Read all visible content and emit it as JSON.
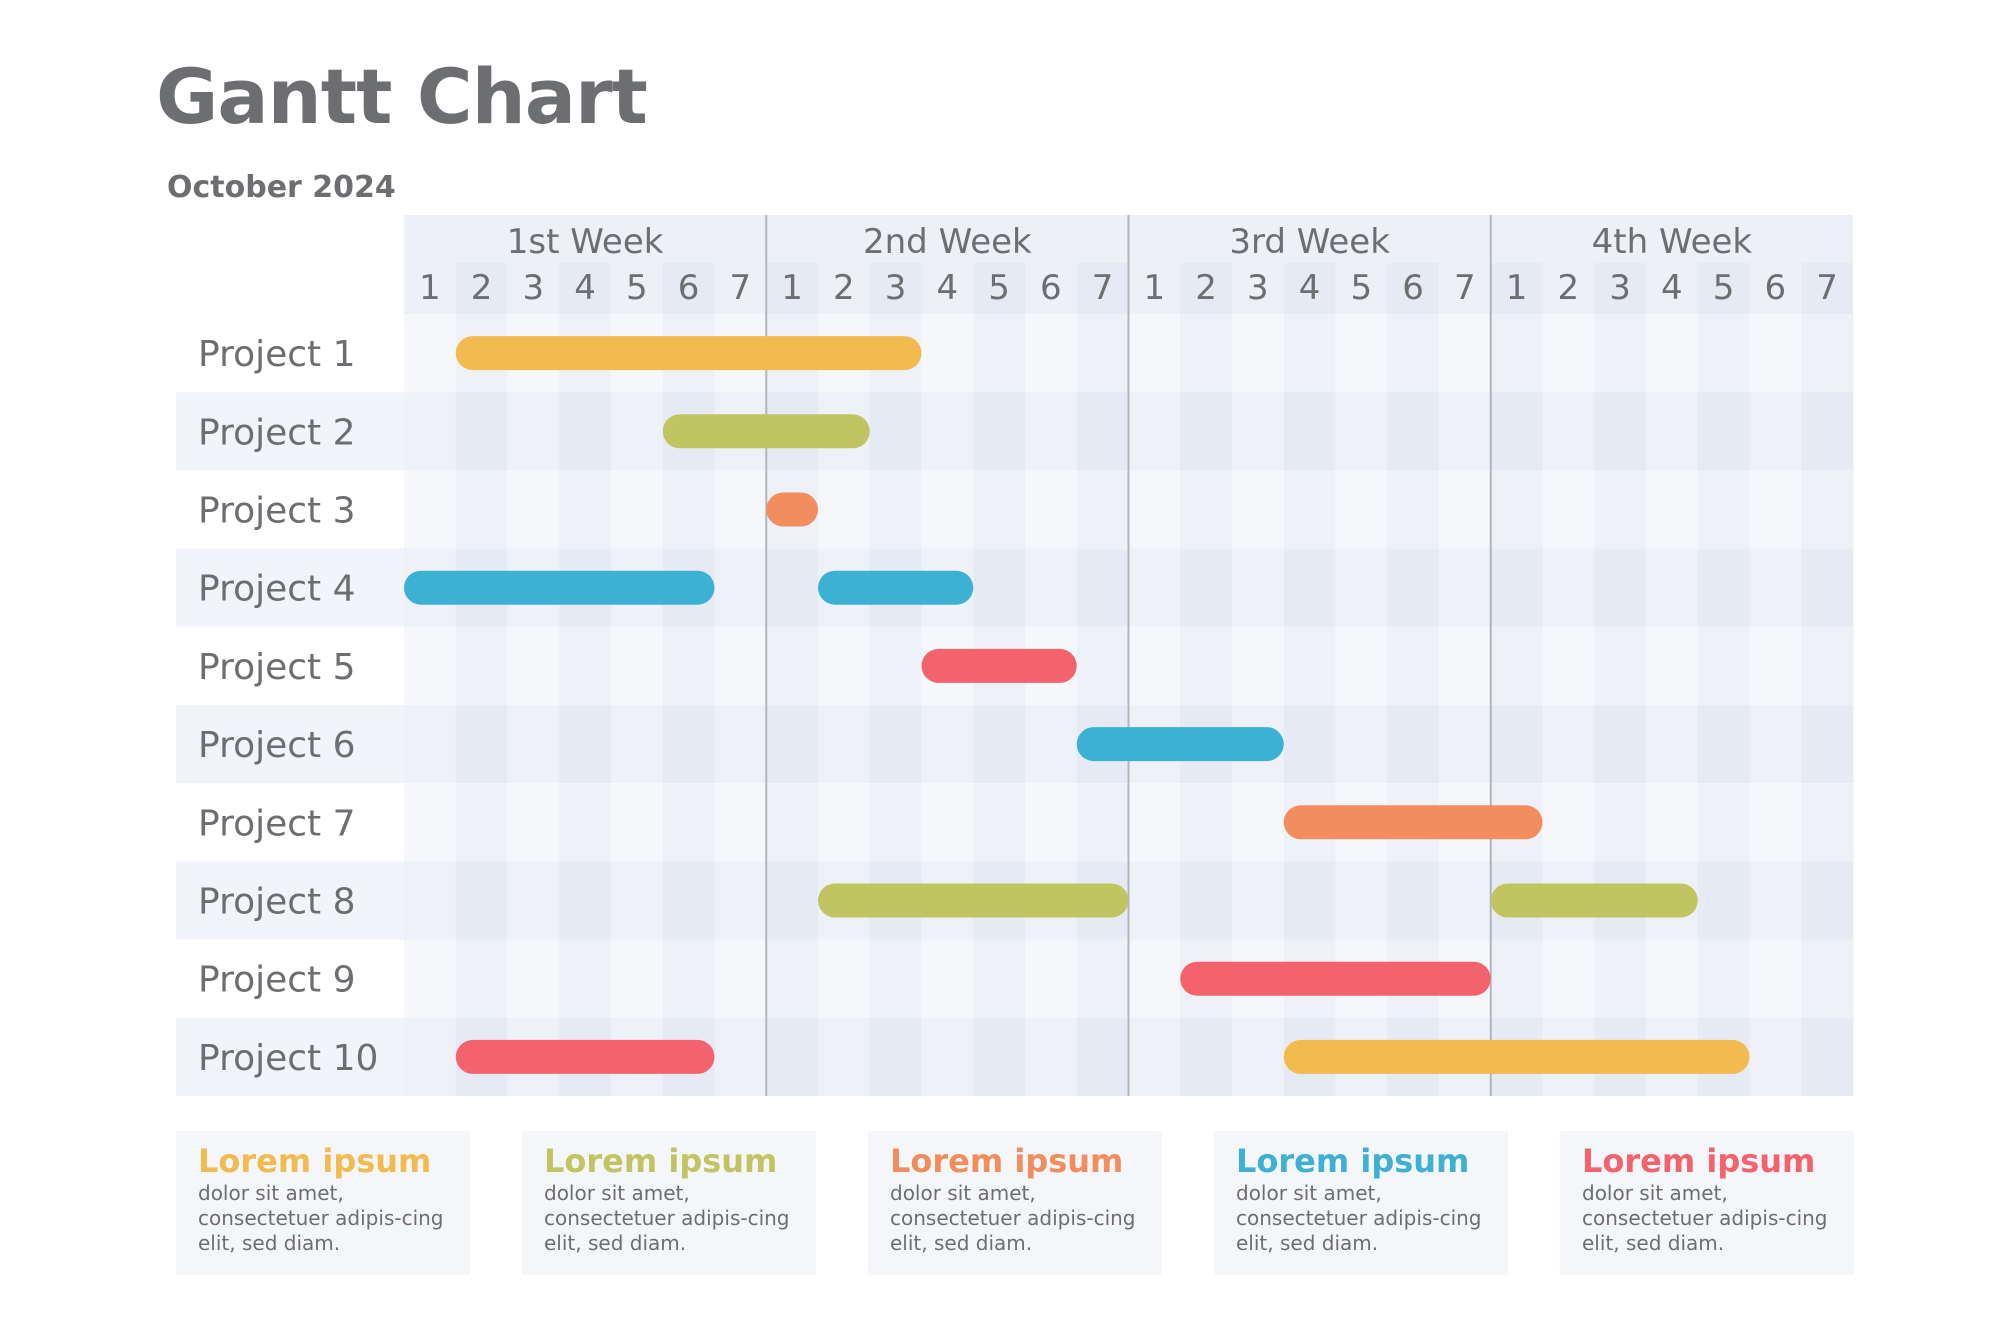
{
  "title": "Gantt Chart",
  "subtitle": "October 2024",
  "colors": {
    "yellow": "#f2bb50",
    "green": "#c0c562",
    "orange": "#f28d5d",
    "blue": "#3db1d4",
    "red": "#f3636e",
    "text": "#6d6e72",
    "separator": "#b3b5bb"
  },
  "chart_data": {
    "type": "gantt",
    "weeks": [
      "1st Week",
      "2nd Week",
      "3rd Week",
      "4th Week"
    ],
    "days": [
      "1",
      "2",
      "3",
      "4",
      "5",
      "6",
      "7"
    ],
    "tasks": [
      {
        "name": "Project 1",
        "segments": [
          {
            "start": {
              "week": 1,
              "day": 2
            },
            "end": {
              "week": 2,
              "day": 3
            },
            "color": "yellow"
          }
        ]
      },
      {
        "name": "Project 2",
        "segments": [
          {
            "start": {
              "week": 1,
              "day": 6
            },
            "end": {
              "week": 2,
              "day": 2
            },
            "color": "green"
          }
        ]
      },
      {
        "name": "Project 3",
        "segments": [
          {
            "start": {
              "week": 2,
              "day": 1
            },
            "end": {
              "week": 2,
              "day": 1
            },
            "color": "orange"
          }
        ]
      },
      {
        "name": "Project 4",
        "segments": [
          {
            "start": {
              "week": 1,
              "day": 1
            },
            "end": {
              "week": 1,
              "day": 6
            },
            "color": "blue"
          },
          {
            "start": {
              "week": 2,
              "day": 2
            },
            "end": {
              "week": 2,
              "day": 4
            },
            "color": "blue"
          }
        ]
      },
      {
        "name": "Project 5",
        "segments": [
          {
            "start": {
              "week": 2,
              "day": 4
            },
            "end": {
              "week": 2,
              "day": 6
            },
            "color": "red"
          }
        ]
      },
      {
        "name": "Project 6",
        "segments": [
          {
            "start": {
              "week": 2,
              "day": 7
            },
            "end": {
              "week": 3,
              "day": 3
            },
            "color": "blue"
          }
        ]
      },
      {
        "name": "Project 7",
        "segments": [
          {
            "start": {
              "week": 3,
              "day": 4
            },
            "end": {
              "week": 4,
              "day": 1
            },
            "color": "orange"
          }
        ]
      },
      {
        "name": "Project 8",
        "segments": [
          {
            "start": {
              "week": 2,
              "day": 2
            },
            "end": {
              "week": 2,
              "day": 7
            },
            "color": "green"
          },
          {
            "start": {
              "week": 4,
              "day": 1
            },
            "end": {
              "week": 4,
              "day": 4
            },
            "color": "green"
          }
        ]
      },
      {
        "name": "Project 9",
        "segments": [
          {
            "start": {
              "week": 3,
              "day": 2
            },
            "end": {
              "week": 3,
              "day": 7
            },
            "color": "red"
          }
        ]
      },
      {
        "name": "Project 10",
        "segments": [
          {
            "start": {
              "week": 1,
              "day": 2
            },
            "end": {
              "week": 1,
              "day": 6
            },
            "color": "red"
          },
          {
            "start": {
              "week": 3,
              "day": 4
            },
            "end": {
              "week": 4,
              "day": 5
            },
            "color": "yellow"
          }
        ]
      }
    ]
  },
  "legend": [
    {
      "title": "Lorem ipsum",
      "text": "dolor sit amet, consectetuer adipis-cing elit, sed diam.",
      "color": "yellow"
    },
    {
      "title": "Lorem ipsum",
      "text": "dolor sit amet, consectetuer adipis-cing elit, sed diam.",
      "color": "green"
    },
    {
      "title": "Lorem ipsum",
      "text": "dolor sit amet, consectetuer adipis-cing elit, sed diam.",
      "color": "orange"
    },
    {
      "title": "Lorem ipsum",
      "text": "dolor sit amet, consectetuer adipis-cing elit, sed diam.",
      "color": "blue"
    },
    {
      "title": "Lorem ipsum",
      "text": "dolor sit amet, consectetuer adipis-cing elit, sed diam.",
      "color": "red"
    }
  ]
}
